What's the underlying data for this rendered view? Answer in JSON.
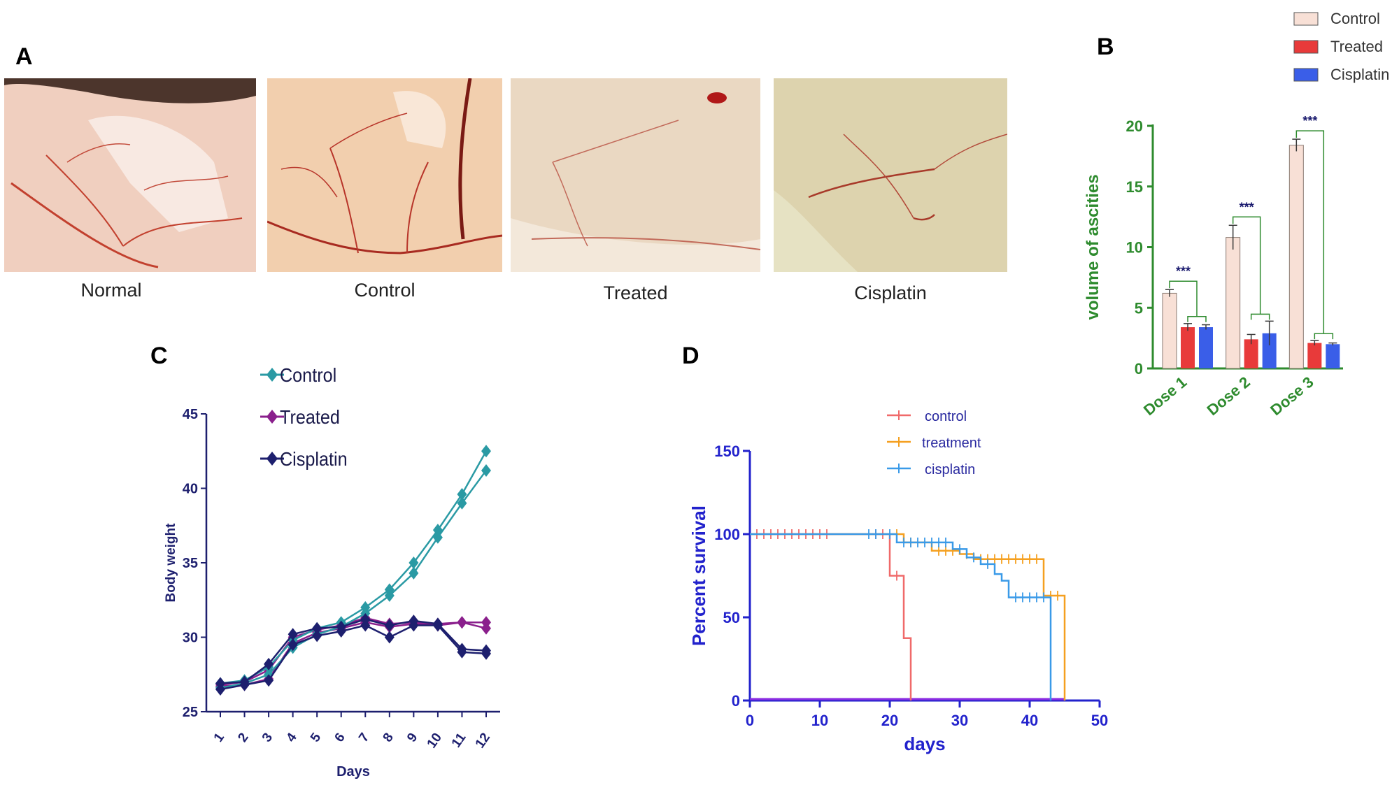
{
  "panel_letters": {
    "a": "A",
    "b": "B",
    "c": "C",
    "d": "D"
  },
  "panel_a": {
    "photos": [
      {
        "label": "Normal",
        "tone": "#f0cfbf"
      },
      {
        "label": "Control",
        "tone": "#f2cfae"
      },
      {
        "label": "Treated",
        "tone": "#ead8c2"
      },
      {
        "label": "Cisplatin",
        "tone": "#ddd3ae"
      }
    ]
  },
  "chart_data": [
    {
      "panel": "B",
      "type": "bar",
      "categories": [
        "Dose 1",
        "Dose 2",
        "Dose 3"
      ],
      "ylabel": "volume of ascities",
      "ylim": [
        0,
        20
      ],
      "yticks": [
        "0",
        "5",
        "10",
        "15",
        "20"
      ],
      "series": [
        {
          "name": "Control",
          "color": "#f8e0d6",
          "values": [
            6.2,
            10.8,
            18.4
          ],
          "errors": [
            0.3,
            1.0,
            0.5
          ]
        },
        {
          "name": "Treated",
          "color": "#e83a3a",
          "values": [
            3.4,
            2.4,
            2.1
          ],
          "errors": [
            0.3,
            0.4,
            0.2
          ]
        },
        {
          "name": "Cisplatin",
          "color": "#3a5ee8",
          "values": [
            3.4,
            2.9,
            2.0
          ],
          "errors": [
            0.2,
            1.0,
            0.1
          ]
        }
      ],
      "significance": [
        "***",
        "***",
        "***"
      ],
      "axis_color": "#2e8b2e",
      "legend_position": "top-right"
    },
    {
      "panel": "C",
      "type": "line",
      "xlabel": "Days",
      "ylabel": "Body weight",
      "x": [
        "1",
        "2",
        "3",
        "4",
        "5",
        "6",
        "7",
        "8",
        "9",
        "10",
        "11",
        "12"
      ],
      "ylim": [
        25,
        45
      ],
      "yticks": [
        "25",
        "30",
        "35",
        "40",
        "45"
      ],
      "series": [
        {
          "name": "Control",
          "color": "#2a9aa4",
          "lines": [
            [
              26.9,
              27.1,
              28.0,
              29.8,
              30.6,
              31.0,
              32.0,
              33.2,
              35.0,
              37.2,
              39.6,
              42.5
            ],
            [
              26.6,
              26.9,
              27.5,
              29.3,
              30.2,
              30.7,
              31.6,
              32.8,
              34.3,
              36.7,
              39.0,
              41.2
            ]
          ]
        },
        {
          "name": "Treated",
          "color": "#8a1f8c",
          "lines": [
            [
              26.8,
              27.0,
              27.8,
              30.0,
              30.5,
              30.8,
              31.3,
              30.9,
              31.0,
              30.9,
              31.0,
              31.0
            ],
            [
              26.7,
              26.8,
              27.2,
              29.6,
              30.3,
              30.6,
              31.0,
              30.7,
              30.9,
              30.8,
              31.0,
              30.6
            ]
          ]
        },
        {
          "name": "Cisplatin",
          "color": "#1d1f6e",
          "lines": [
            [
              26.9,
              27.0,
              28.2,
              30.2,
              30.6,
              30.7,
              31.2,
              30.8,
              31.1,
              30.9,
              29.2,
              29.1
            ],
            [
              26.5,
              26.8,
              27.1,
              29.5,
              30.1,
              30.4,
              30.8,
              30.0,
              30.8,
              30.8,
              29.0,
              28.9
            ]
          ]
        }
      ],
      "axis_color": "#1d1f6e",
      "legend_position": "top-left"
    },
    {
      "panel": "D",
      "type": "line",
      "xlabel": "days",
      "ylabel": "Percent survival",
      "xlim": [
        0,
        50
      ],
      "ylim": [
        0,
        150
      ],
      "xticks": [
        "0",
        "10",
        "20",
        "30",
        "40",
        "50"
      ],
      "yticks": [
        "0",
        "50",
        "100",
        "150"
      ],
      "series": [
        {
          "name": "control",
          "color": "#f06a6a",
          "steps": [
            [
              0,
              100
            ],
            [
              20,
              100
            ],
            [
              20,
              75
            ],
            [
              22,
              75
            ],
            [
              22,
              37.5
            ],
            [
              23,
              37.5
            ],
            [
              23,
              0
            ]
          ],
          "censored_x": [
            1,
            2,
            3,
            4,
            5,
            6,
            7,
            8,
            9,
            10,
            11,
            18,
            19,
            21
          ]
        },
        {
          "name": "treatment",
          "color": "#f5a020",
          "steps": [
            [
              0,
              100
            ],
            [
              22,
              100
            ],
            [
              22,
              95
            ],
            [
              26,
              95
            ],
            [
              26,
              90
            ],
            [
              30,
              90
            ],
            [
              30,
              88
            ],
            [
              32,
              88
            ],
            [
              32,
              85
            ],
            [
              42,
              85
            ],
            [
              42,
              63
            ],
            [
              45,
              63
            ],
            [
              45,
              0
            ]
          ],
          "censored_x": [
            21,
            23,
            27,
            28,
            29,
            31,
            33,
            34,
            35,
            36,
            37,
            38,
            39,
            40,
            41,
            43,
            44
          ]
        },
        {
          "name": "cisplatin",
          "color": "#3a9ae8",
          "steps": [
            [
              0,
              100
            ],
            [
              21,
              100
            ],
            [
              21,
              95
            ],
            [
              29,
              95
            ],
            [
              29,
              91
            ],
            [
              31,
              91
            ],
            [
              31,
              86
            ],
            [
              33,
              86
            ],
            [
              33,
              82
            ],
            [
              35,
              82
            ],
            [
              35,
              76
            ],
            [
              36,
              76
            ],
            [
              36,
              72
            ],
            [
              37,
              72
            ],
            [
              37,
              62
            ],
            [
              43,
              62
            ],
            [
              43,
              0
            ]
          ],
          "censored_x": [
            17,
            18,
            20,
            22,
            23,
            24,
            25,
            26,
            27,
            28,
            30,
            32,
            34,
            38,
            39,
            40,
            41,
            42
          ]
        }
      ],
      "baseline_color": "#8a2be2",
      "axis_color": "#2222cc",
      "legend_position": "top"
    }
  ]
}
